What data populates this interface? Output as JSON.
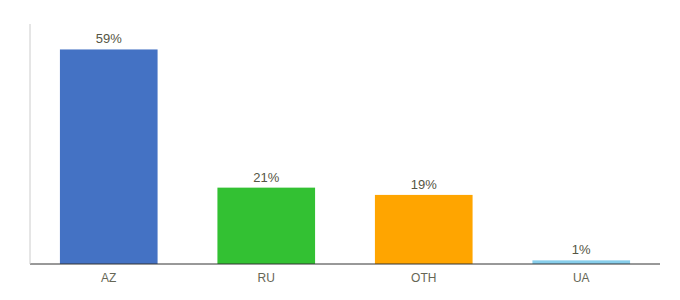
{
  "chart_data": {
    "type": "bar",
    "categories": [
      "AZ",
      "RU",
      "OTH",
      "UA"
    ],
    "values": [
      59,
      21,
      19,
      1
    ],
    "value_labels": [
      "59%",
      "21%",
      "19%",
      "1%"
    ],
    "colors": [
      "#4472C4",
      "#33C133",
      "#FFA500",
      "#87CEEB"
    ],
    "ylim": [
      0,
      66
    ],
    "data_labels": true,
    "tick_labels": "x"
  }
}
